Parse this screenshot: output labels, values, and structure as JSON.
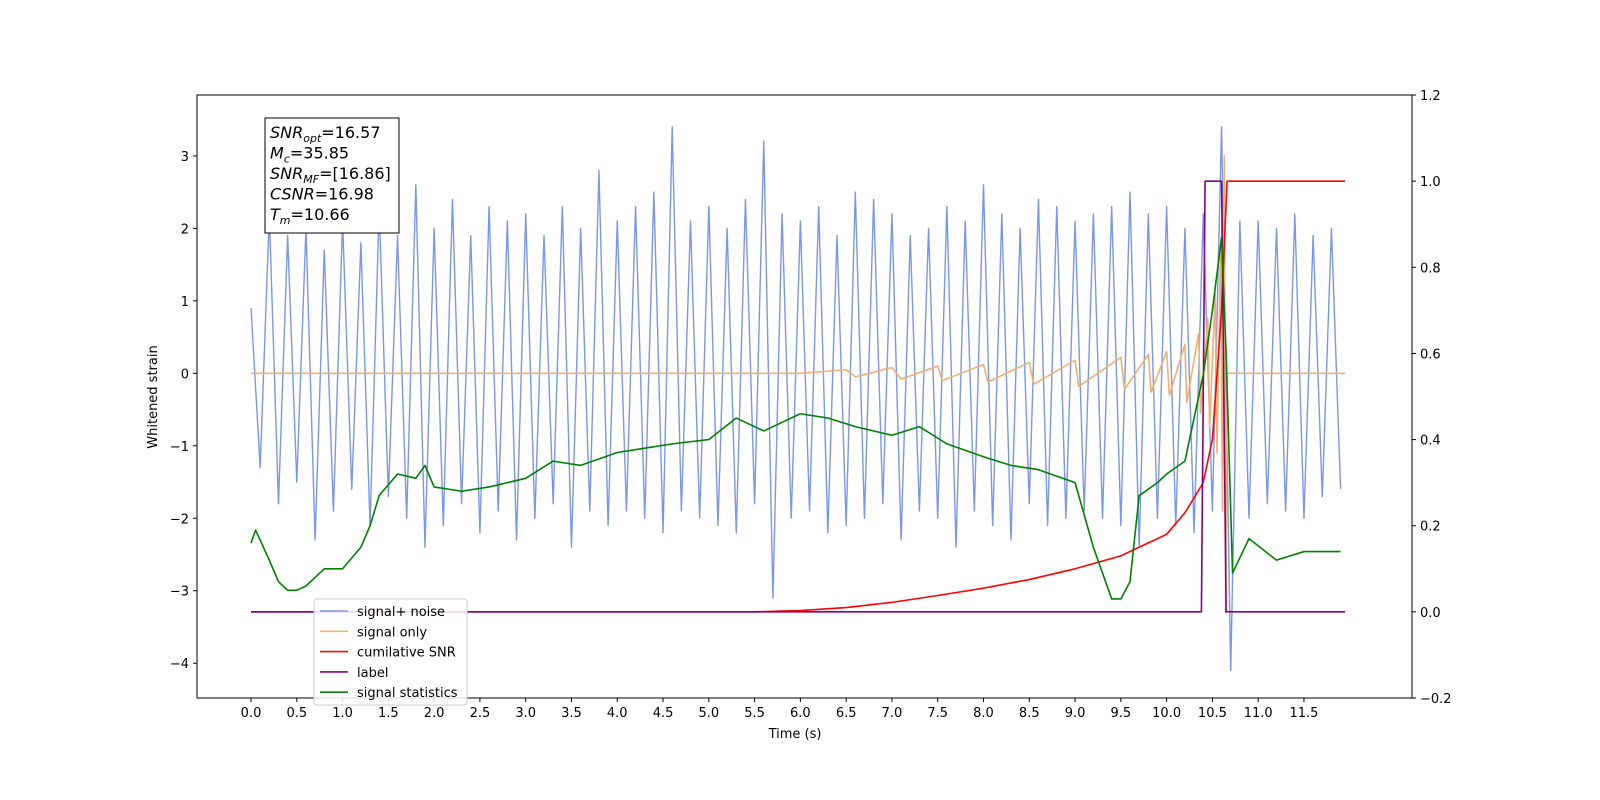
{
  "chart_data": {
    "type": "line",
    "xlabel": "Time (s)",
    "ylabel": "Whitened strain",
    "xlim": [
      -0.59,
      12.68
    ],
    "ylim": [
      -4.48,
      3.84
    ],
    "y2lim": [
      -0.2,
      1.2
    ],
    "xticks": [
      {
        "value": 0,
        "label": "0.0"
      },
      0.5,
      {
        "value": 1,
        "label": "1.0"
      },
      1.5,
      {
        "value": 2,
        "label": "2.0"
      },
      2.5,
      {
        "value": 3,
        "label": "3.0"
      },
      3.5,
      {
        "value": 4,
        "label": "4.0"
      },
      4.5,
      {
        "value": 5,
        "label": "5.0"
      },
      5.5,
      {
        "value": 6,
        "label": "6.0"
      },
      6.5,
      {
        "value": 7,
        "label": "7.0"
      },
      7.5,
      {
        "value": 8,
        "label": "8.0"
      },
      8.5,
      {
        "value": 9,
        "label": "9.0"
      },
      9.5,
      {
        "value": 10,
        "label": "10.0"
      },
      10.5,
      {
        "value": 11,
        "label": "11.0"
      },
      11.5
    ],
    "yticks": [
      {
        "value": -4,
        "label": "−4"
      },
      {
        "value": -3,
        "label": "−3"
      },
      {
        "value": -2,
        "label": "−2"
      },
      {
        "value": -1,
        "label": "−1"
      },
      0,
      1,
      2,
      3
    ],
    "y2ticks": [
      {
        "value": -0.2,
        "label": "−0.2"
      },
      {
        "value": 0,
        "label": "0.0"
      },
      0.2,
      0.4,
      0.6,
      0.8,
      {
        "value": 1,
        "label": "1.0"
      },
      1.2
    ],
    "annotation": [
      [
        "SNR",
        "opt",
        "=16.57"
      ],
      [
        "M",
        "c",
        "=35.85"
      ],
      [
        "SNR",
        "MF",
        "=[16.86]"
      ],
      [
        "CSNR",
        "",
        "=16.98"
      ],
      [
        "T",
        "m",
        "=10.66"
      ]
    ],
    "series": [
      {
        "name": "signal+ noise",
        "color": "#7b96e8",
        "axis": "y",
        "x": [
          0,
          0.1,
          0.2,
          0.3,
          0.4,
          0.5,
          0.6,
          0.7,
          0.8,
          0.9,
          1,
          1.1,
          1.2,
          1.3,
          1.4,
          1.5,
          1.6,
          1.7,
          1.8,
          1.9,
          2,
          2.1,
          2.2,
          2.3,
          2.4,
          2.5,
          2.6,
          2.7,
          2.8,
          2.9,
          3,
          3.1,
          3.2,
          3.3,
          3.4,
          3.5,
          3.6,
          3.7,
          3.8,
          3.9,
          4,
          4.1,
          4.2,
          4.3,
          4.4,
          4.5,
          4.6,
          4.7,
          4.8,
          4.9,
          5,
          5.1,
          5.2,
          5.3,
          5.4,
          5.5,
          5.6,
          5.7,
          5.8,
          5.9,
          6,
          6.1,
          6.2,
          6.3,
          6.4,
          6.5,
          6.6,
          6.7,
          6.8,
          6.9,
          7,
          7.1,
          7.2,
          7.3,
          7.4,
          7.5,
          7.6,
          7.7,
          7.8,
          7.9,
          8,
          8.1,
          8.2,
          8.3,
          8.4,
          8.5,
          8.6,
          8.7,
          8.8,
          8.9,
          9,
          9.1,
          9.2,
          9.3,
          9.4,
          9.5,
          9.6,
          9.7,
          9.8,
          9.9,
          10,
          10.1,
          10.2,
          10.3,
          10.4,
          10.5,
          10.6,
          10.7,
          10.8,
          10.9,
          11,
          11.1,
          11.2,
          11.3,
          11.4,
          11.5,
          11.6,
          11.7,
          11.8,
          11.9
        ],
        "values": [
          0.9,
          -1.3,
          2.2,
          -1.8,
          1.9,
          -1.5,
          2.0,
          -2.3,
          1.7,
          -1.9,
          2.1,
          -1.6,
          1.8,
          -2.1,
          2.3,
          -1.7,
          1.9,
          -2.0,
          2.6,
          -2.4,
          2.0,
          -2.1,
          2.4,
          -1.8,
          1.9,
          -2.2,
          2.3,
          -1.9,
          2.1,
          -2.3,
          2.2,
          -2.0,
          1.9,
          -1.8,
          2.3,
          -2.4,
          2.0,
          -1.9,
          2.8,
          -2.1,
          2.1,
          -1.9,
          2.3,
          -2.0,
          2.5,
          -2.2,
          3.4,
          -1.9,
          2.1,
          -2.0,
          2.3,
          -2.1,
          2.0,
          -2.2,
          2.4,
          -1.8,
          3.2,
          -3.1,
          2.2,
          -2.0,
          2.1,
          -1.9,
          2.3,
          -2.2,
          1.9,
          -2.1,
          2.5,
          -2.0,
          2.4,
          -1.8,
          2.2,
          -2.3,
          1.9,
          -1.9,
          2.0,
          -2.0,
          2.3,
          -2.4,
          2.1,
          -1.9,
          2.6,
          -2.1,
          2.2,
          -2.3,
          2.0,
          -1.8,
          2.4,
          -2.1,
          2.3,
          -2.0,
          2.1,
          -1.9,
          2.2,
          -2.0,
          2.3,
          -2.1,
          2.5,
          -2.4,
          2.2,
          -2.0,
          2.3,
          -2.1,
          2.0,
          -2.2,
          2.2,
          -1.9,
          3.4,
          -4.1,
          2.1,
          -2.0,
          2.1,
          -1.8,
          2.0,
          -1.9,
          2.2,
          -2.0,
          1.9,
          -1.7,
          2.0,
          -1.6
        ]
      },
      {
        "name": "signal only",
        "color": "#f0b070",
        "axis": "y",
        "x": [
          0,
          6.0,
          6.5,
          6.6,
          7.0,
          7.1,
          7.5,
          7.55,
          8.0,
          8.05,
          8.5,
          8.55,
          9.0,
          9.04,
          9.5,
          9.54,
          9.8,
          9.83,
          10.0,
          10.03,
          10.2,
          10.22,
          10.35,
          10.37,
          10.45,
          10.47,
          10.53,
          10.55,
          10.59,
          10.61,
          10.63,
          10.645,
          10.66,
          11.95
        ],
        "values": [
          0,
          0,
          0.05,
          -0.05,
          0.08,
          -0.08,
          0.1,
          -0.1,
          0.12,
          -0.12,
          0.15,
          -0.15,
          0.18,
          -0.18,
          0.22,
          -0.22,
          0.26,
          -0.26,
          0.3,
          -0.3,
          0.4,
          -0.4,
          0.55,
          -0.55,
          0.75,
          -0.75,
          1.1,
          -1.1,
          1.8,
          -1.9,
          3.0,
          -3.3,
          0,
          0
        ]
      },
      {
        "name": "cumilative SNR",
        "color": "#ff0000",
        "axis": "y2",
        "x": [
          0,
          5.5,
          6,
          6.5,
          7,
          7.5,
          8,
          8.5,
          9,
          9.5,
          10,
          10.2,
          10.4,
          10.5,
          10.6,
          10.65,
          10.66,
          11.95
        ],
        "values": [
          0,
          0,
          0.003,
          0.01,
          0.022,
          0.038,
          0.055,
          0.075,
          0.1,
          0.13,
          0.18,
          0.23,
          0.3,
          0.4,
          0.7,
          0.95,
          1.0,
          1.0
        ]
      },
      {
        "name": "label",
        "color": "#800080",
        "axis": "y2",
        "x": [
          0,
          10.38,
          10.42,
          10.6,
          10.65,
          11.95
        ],
        "values": [
          0,
          0,
          1,
          1,
          0,
          0
        ]
      },
      {
        "name": "signal statistics",
        "color": "#008000",
        "axis": "y2",
        "x": [
          0,
          0.05,
          0.2,
          0.3,
          0.4,
          0.5,
          0.6,
          0.7,
          0.8,
          1.0,
          1.2,
          1.3,
          1.4,
          1.6,
          1.8,
          1.9,
          2.0,
          2.3,
          2.6,
          3.0,
          3.3,
          3.6,
          4.0,
          4.3,
          4.6,
          5.0,
          5.3,
          5.6,
          6.0,
          6.3,
          6.6,
          7.0,
          7.3,
          7.6,
          8.0,
          8.3,
          8.6,
          9.0,
          9.2,
          9.4,
          9.5,
          9.6,
          9.7,
          9.9,
          10.0,
          10.2,
          10.4,
          10.5,
          10.6,
          10.65,
          10.72,
          10.9,
          11.2,
          11.5,
          11.9
        ],
        "values": [
          0.16,
          0.19,
          0.12,
          0.07,
          0.05,
          0.05,
          0.06,
          0.08,
          0.1,
          0.1,
          0.15,
          0.2,
          0.27,
          0.32,
          0.31,
          0.34,
          0.29,
          0.28,
          0.29,
          0.31,
          0.35,
          0.34,
          0.37,
          0.38,
          0.39,
          0.4,
          0.45,
          0.42,
          0.46,
          0.45,
          0.43,
          0.41,
          0.43,
          0.39,
          0.36,
          0.34,
          0.33,
          0.3,
          0.15,
          0.03,
          0.03,
          0.07,
          0.27,
          0.3,
          0.32,
          0.35,
          0.55,
          0.7,
          0.87,
          0.6,
          0.09,
          0.17,
          0.12,
          0.14,
          0.14
        ]
      }
    ]
  }
}
